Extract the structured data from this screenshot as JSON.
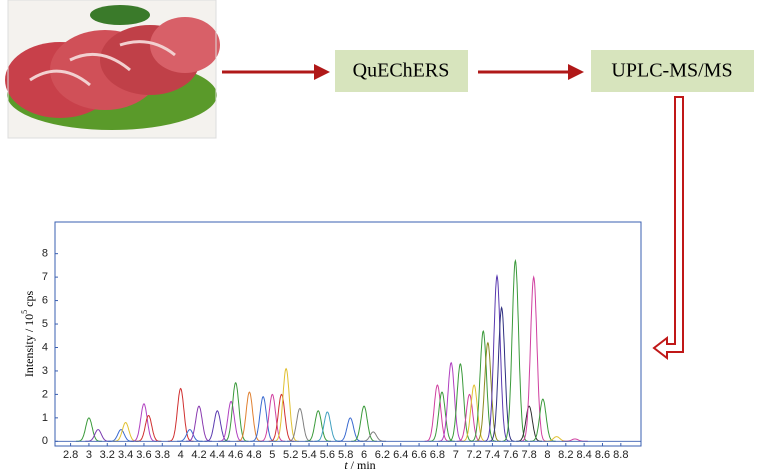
{
  "steps": [
    {
      "label": "QuEChERS"
    },
    {
      "label": "UPLC-MS/MS"
    }
  ],
  "chromatogram": {
    "xlim": [
      2.63,
      9.02
    ],
    "ylim": [
      -0.2,
      9.35
    ],
    "xticks": [
      2.8,
      3,
      3.2,
      3.4,
      3.6,
      3.8,
      4,
      4.2,
      4.4,
      4.6,
      4.8,
      5,
      5.2,
      5.4,
      5.6,
      5.8,
      6,
      6.2,
      6.4,
      6.6,
      6.8,
      7,
      7.2,
      7.4,
      7.6,
      7.8,
      8,
      8.2,
      8.4,
      8.6,
      8.8
    ],
    "yticks": [
      0,
      1,
      2,
      3,
      4,
      5,
      6,
      7,
      8
    ],
    "x_label": {
      "var": "t",
      "unit": "/ min"
    },
    "y_label": {
      "text": "Intensity / 10",
      "sup": "5",
      "unit": "cps"
    },
    "peaks": [
      {
        "t": 3.0,
        "h": 1.0,
        "color": "#3a9a3a"
      },
      {
        "t": 3.1,
        "h": 0.5,
        "color": "#7a3ab0"
      },
      {
        "t": 3.35,
        "h": 0.5,
        "color": "#3a6ad0"
      },
      {
        "t": 3.4,
        "h": 0.8,
        "color": "#e0c030"
      },
      {
        "t": 3.6,
        "h": 1.6,
        "color": "#b040c0"
      },
      {
        "t": 3.65,
        "h": 1.1,
        "color": "#d03030"
      },
      {
        "t": 4.0,
        "h": 2.25,
        "color": "#d03030"
      },
      {
        "t": 4.1,
        "h": 0.5,
        "color": "#3a6ad0"
      },
      {
        "t": 4.2,
        "h": 1.5,
        "color": "#8a3ab0"
      },
      {
        "t": 4.4,
        "h": 1.3,
        "color": "#5a3ab0"
      },
      {
        "t": 4.55,
        "h": 1.7,
        "color": "#b040c0"
      },
      {
        "t": 4.6,
        "h": 2.5,
        "color": "#3a9a3a"
      },
      {
        "t": 4.75,
        "h": 2.1,
        "color": "#e08030"
      },
      {
        "t": 4.9,
        "h": 1.9,
        "color": "#3a6ad0"
      },
      {
        "t": 5.0,
        "h": 2.0,
        "color": "#d040a0"
      },
      {
        "t": 5.1,
        "h": 2.0,
        "color": "#d03030"
      },
      {
        "t": 5.15,
        "h": 3.1,
        "color": "#e0c030"
      },
      {
        "t": 5.3,
        "h": 1.4,
        "color": "#808080"
      },
      {
        "t": 5.5,
        "h": 1.3,
        "color": "#3a9a3a"
      },
      {
        "t": 5.6,
        "h": 1.25,
        "color": "#40a0c0"
      },
      {
        "t": 5.85,
        "h": 1.0,
        "color": "#3a6ad0"
      },
      {
        "t": 6.0,
        "h": 1.5,
        "color": "#3a9a3a"
      },
      {
        "t": 6.1,
        "h": 0.4,
        "color": "#808080"
      },
      {
        "t": 6.8,
        "h": 2.4,
        "color": "#d040a0"
      },
      {
        "t": 6.85,
        "h": 2.1,
        "color": "#3a9a3a"
      },
      {
        "t": 6.95,
        "h": 3.35,
        "color": "#b040c0"
      },
      {
        "t": 7.05,
        "h": 3.3,
        "color": "#3a9a3a"
      },
      {
        "t": 7.15,
        "h": 2.0,
        "color": "#d040a0"
      },
      {
        "t": 7.2,
        "h": 2.4,
        "color": "#e0c030"
      },
      {
        "t": 7.3,
        "h": 4.7,
        "color": "#3a9a3a"
      },
      {
        "t": 7.35,
        "h": 4.2,
        "color": "#8a8a20"
      },
      {
        "t": 7.45,
        "h": 7.05,
        "color": "#5a3ab0"
      },
      {
        "t": 7.5,
        "h": 5.7,
        "color": "#303080"
      },
      {
        "t": 7.65,
        "h": 7.7,
        "color": "#3a9a3a"
      },
      {
        "t": 7.8,
        "h": 1.5,
        "color": "#303030"
      },
      {
        "t": 7.85,
        "h": 7.0,
        "color": "#d040a0"
      },
      {
        "t": 7.95,
        "h": 1.8,
        "color": "#3a9a3a"
      },
      {
        "t": 8.1,
        "h": 0.2,
        "color": "#e0c030"
      },
      {
        "t": 8.3,
        "h": 0.1,
        "color": "#d040a0"
      }
    ]
  }
}
